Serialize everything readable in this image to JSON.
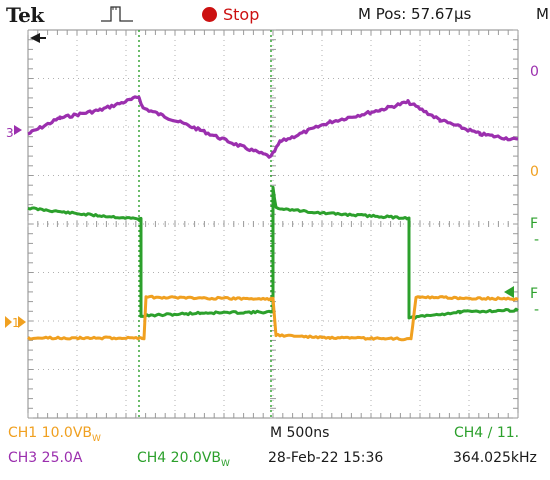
{
  "header": {
    "brand": "Tek",
    "trigger_icon": "trigger-pulse-icon",
    "status": "Stop",
    "status_color": "#cc1111",
    "position": "M Pos: 57.67µs",
    "right_cut": "M"
  },
  "right_labels": {
    "ch3": "0",
    "ch1": "0",
    "ch4_a": "F",
    "ch4_b": "-",
    "ch4_c": "F",
    "ch4_d": "-"
  },
  "markers": {
    "ch3": "3",
    "ch1": "1"
  },
  "footer": {
    "ch1": "CH1  10.0VB",
    "ch1_sub": "W",
    "timebase": "M 500ns",
    "ch4_trigger": "CH4 ∕ 11.",
    "ch3": "CH3  25.0A",
    "ch4": "CH4  20.0VB",
    "ch4_sub": "W",
    "datetime": "28-Feb-22 15:36",
    "frequency": "364.025kHz"
  },
  "colors": {
    "ch1": "#f0a020",
    "ch3": "#9b2fae",
    "ch4": "#2ca02c",
    "grid": "#888888",
    "cursor": "#2ca02c"
  }
}
